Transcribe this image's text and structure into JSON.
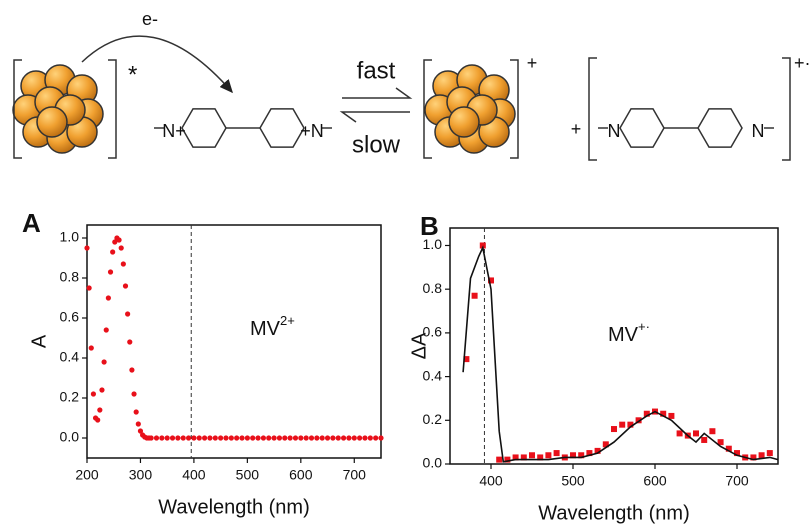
{
  "scheme": {
    "electron": "e-",
    "reactant_charge": "*",
    "mv_n_left": "N+",
    "mv_n_right": "+N",
    "forward": "fast",
    "reverse": "slow",
    "product_charge": "+",
    "plus": "+",
    "rad_n_left": "N",
    "rad_n_right": "N",
    "radical_charge": "+·"
  },
  "chart_data": [
    {
      "type": "scatter",
      "panel": "A",
      "x_label": "Wavelength (nm)",
      "y_label": "A",
      "annotation": {
        "text": "MV",
        "superscript": "2+"
      },
      "vline": 395,
      "xlim": [
        200,
        750
      ],
      "ylim": [
        -0.1,
        1.065
      ],
      "xticks": [
        200,
        300,
        400,
        500,
        600,
        700
      ],
      "yticks": [
        {
          "value": 0,
          "label": "0.0"
        },
        0.2,
        0.4,
        0.6,
        0.8,
        {
          "value": 1,
          "label": "1.0"
        }
      ],
      "series": [
        {
          "color": "#e8101a",
          "marker": "circle",
          "line": false,
          "x": [
            200,
            204,
            208,
            212,
            216,
            220,
            224,
            228,
            232,
            236,
            240,
            244,
            248,
            252,
            256,
            260,
            264,
            268,
            272,
            276,
            280,
            284,
            288,
            292,
            296,
            300,
            304,
            308,
            312,
            316,
            320,
            330,
            340,
            350,
            360,
            370,
            380,
            390,
            400,
            410,
            420,
            430,
            440,
            450,
            460,
            470,
            480,
            490,
            500,
            510,
            520,
            530,
            540,
            550,
            560,
            570,
            580,
            590,
            600,
            610,
            620,
            630,
            640,
            650,
            660,
            670,
            680,
            690,
            700,
            710,
            720,
            730,
            740,
            750
          ],
          "values": [
            0.95,
            0.75,
            0.45,
            0.22,
            0.1,
            0.09,
            0.14,
            0.24,
            0.38,
            0.54,
            0.7,
            0.83,
            0.93,
            0.98,
            1.0,
            0.99,
            0.95,
            0.87,
            0.76,
            0.62,
            0.48,
            0.34,
            0.22,
            0.13,
            0.07,
            0.035,
            0.015,
            0.005,
            0,
            0,
            0,
            0,
            0,
            0,
            0,
            0,
            0,
            0,
            0,
            0,
            0,
            0,
            0,
            0,
            0,
            0,
            0,
            0,
            0,
            0,
            0,
            0,
            0,
            0,
            0,
            0,
            0,
            0,
            0,
            0,
            0,
            0,
            0,
            0,
            0,
            0,
            0,
            0,
            0,
            0,
            0,
            0,
            0,
            0
          ]
        }
      ]
    },
    {
      "type": "scatter",
      "panel": "B",
      "x_label": "Wavelength (nm)",
      "y_label": "ΔA",
      "annotation": {
        "text": "MV",
        "superscript": "+·"
      },
      "vline": 392,
      "xlim": [
        350,
        750
      ],
      "ylim": [
        0,
        1.08
      ],
      "xticks": [
        400,
        500,
        600,
        700
      ],
      "yticks": [
        {
          "value": 0,
          "label": "0.0"
        },
        0.2,
        0.4,
        0.6,
        0.8,
        {
          "value": 1,
          "label": "1.0"
        }
      ],
      "series": [
        {
          "color": "#e8101a",
          "marker": "square",
          "line": false,
          "x": [
            370,
            380,
            390,
            400,
            410,
            420,
            430,
            440,
            450,
            460,
            470,
            480,
            490,
            500,
            510,
            520,
            530,
            540,
            550,
            560,
            570,
            580,
            590,
            600,
            610,
            620,
            630,
            640,
            650,
            660,
            670,
            680,
            690,
            700,
            710,
            720,
            730,
            740
          ],
          "values": [
            0.48,
            0.77,
            1.0,
            0.84,
            0.02,
            0.02,
            0.03,
            0.03,
            0.04,
            0.03,
            0.04,
            0.05,
            0.03,
            0.04,
            0.04,
            0.05,
            0.06,
            0.09,
            0.16,
            0.18,
            0.18,
            0.2,
            0.23,
            0.24,
            0.23,
            0.22,
            0.14,
            0.13,
            0.14,
            0.11,
            0.15,
            0.1,
            0.07,
            0.05,
            0.03,
            0.03,
            0.04,
            0.05
          ]
        },
        {
          "color": "#111111",
          "marker": "none",
          "line": true,
          "x": [
            366,
            375,
            385,
            390,
            400,
            410,
            415,
            430,
            450,
            470,
            490,
            510,
            530,
            550,
            570,
            590,
            600,
            620,
            640,
            650,
            660,
            680,
            700,
            720,
            740,
            750
          ],
          "values": [
            0.42,
            0.85,
            0.95,
            0.99,
            0.8,
            0.15,
            0.01,
            0.02,
            0.02,
            0.02,
            0.03,
            0.03,
            0.05,
            0.1,
            0.17,
            0.22,
            0.24,
            0.2,
            0.13,
            0.1,
            0.14,
            0.08,
            0.04,
            0.02,
            0.03,
            0.02
          ]
        }
      ]
    }
  ]
}
